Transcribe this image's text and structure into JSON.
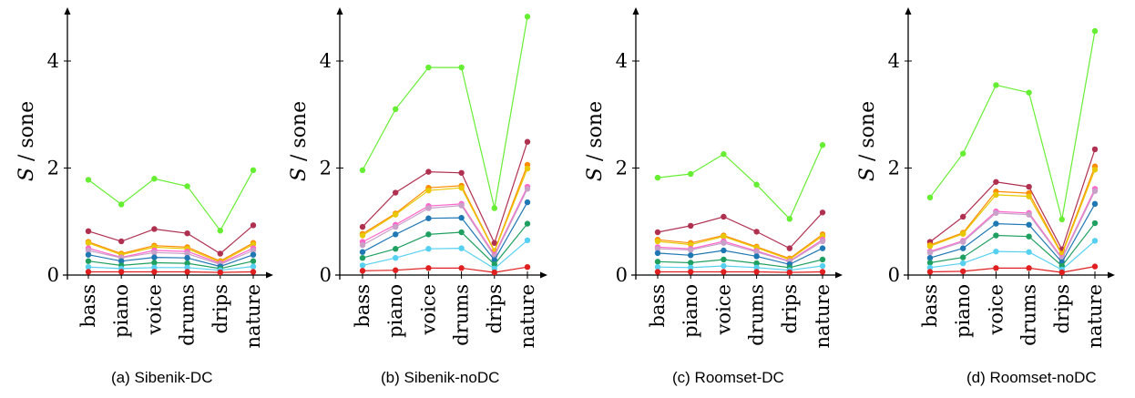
{
  "chart_data": [
    {
      "type": "line",
      "caption": "(a) Sibenik-DC",
      "ylabel_var": "S",
      "ylabel_unit": "/ sone",
      "categories": [
        "bass",
        "piano",
        "voice",
        "drums",
        "drips",
        "nature"
      ],
      "yticks": [
        "0",
        "2",
        "4"
      ],
      "ylim": [
        0,
        5
      ],
      "series": [
        {
          "color": "#66ee33",
          "values": [
            1.78,
            1.32,
            1.8,
            1.66,
            0.83,
            1.96
          ]
        },
        {
          "color": "#b03050",
          "values": [
            0.82,
            0.63,
            0.86,
            0.78,
            0.4,
            0.93
          ]
        },
        {
          "color": "#ff8c00",
          "values": [
            0.62,
            0.4,
            0.55,
            0.52,
            0.26,
            0.6
          ]
        },
        {
          "color": "#e8c800",
          "values": [
            0.6,
            0.38,
            0.52,
            0.49,
            0.24,
            0.57
          ]
        },
        {
          "color": "#ff66cc",
          "values": [
            0.5,
            0.33,
            0.46,
            0.44,
            0.22,
            0.5
          ]
        },
        {
          "color": "#c8a0c8",
          "values": [
            0.46,
            0.32,
            0.42,
            0.4,
            0.2,
            0.46
          ]
        },
        {
          "color": "#1f77b4",
          "values": [
            0.38,
            0.26,
            0.33,
            0.32,
            0.16,
            0.38
          ]
        },
        {
          "color": "#20a060",
          "values": [
            0.26,
            0.18,
            0.23,
            0.22,
            0.12,
            0.26
          ]
        },
        {
          "color": "#55d0f0",
          "values": [
            0.15,
            0.12,
            0.14,
            0.14,
            0.09,
            0.16
          ]
        },
        {
          "color": "#e02020",
          "values": [
            0.06,
            0.06,
            0.06,
            0.06,
            0.05,
            0.06
          ]
        }
      ]
    },
    {
      "type": "line",
      "caption": "(b) Sibenik-noDC",
      "ylabel_var": "S",
      "ylabel_unit": "/ sone",
      "categories": [
        "bass",
        "piano",
        "voice",
        "drums",
        "drips",
        "nature"
      ],
      "yticks": [
        "0",
        "2",
        "4"
      ],
      "ylim": [
        0,
        5
      ],
      "series": [
        {
          "color": "#66ee33",
          "values": [
            1.96,
            3.1,
            3.88,
            3.88,
            1.25,
            4.83
          ]
        },
        {
          "color": "#b03050",
          "values": [
            0.9,
            1.54,
            1.93,
            1.91,
            0.6,
            2.49
          ]
        },
        {
          "color": "#ff8c00",
          "values": [
            0.77,
            1.15,
            1.63,
            1.67,
            0.45,
            2.06
          ]
        },
        {
          "color": "#e8c800",
          "values": [
            0.74,
            1.13,
            1.58,
            1.63,
            0.44,
            1.99
          ]
        },
        {
          "color": "#ff66cc",
          "values": [
            0.62,
            0.94,
            1.29,
            1.33,
            0.38,
            1.65
          ]
        },
        {
          "color": "#c8a0c8",
          "values": [
            0.56,
            0.9,
            1.25,
            1.3,
            0.35,
            1.61
          ]
        },
        {
          "color": "#1f77b4",
          "values": [
            0.43,
            0.76,
            1.06,
            1.07,
            0.28,
            1.36
          ]
        },
        {
          "color": "#20a060",
          "values": [
            0.32,
            0.49,
            0.76,
            0.8,
            0.2,
            0.96
          ]
        },
        {
          "color": "#55d0f0",
          "values": [
            0.18,
            0.32,
            0.49,
            0.5,
            0.12,
            0.65
          ]
        },
        {
          "color": "#e02020",
          "values": [
            0.08,
            0.09,
            0.13,
            0.13,
            0.05,
            0.15
          ]
        }
      ]
    },
    {
      "type": "line",
      "caption": "(c) Roomset-DC",
      "ylabel_var": "S",
      "ylabel_unit": "/ sone",
      "categories": [
        "bass",
        "piano",
        "voice",
        "drums",
        "drips",
        "nature"
      ],
      "yticks": [
        "0",
        "2",
        "4"
      ],
      "ylim": [
        0,
        5
      ],
      "series": [
        {
          "color": "#66ee33",
          "values": [
            1.82,
            1.89,
            2.26,
            1.69,
            1.05,
            2.43
          ]
        },
        {
          "color": "#b03050",
          "values": [
            0.8,
            0.92,
            1.09,
            0.81,
            0.5,
            1.17
          ]
        },
        {
          "color": "#ff8c00",
          "values": [
            0.66,
            0.6,
            0.74,
            0.53,
            0.31,
            0.76
          ]
        },
        {
          "color": "#e8c800",
          "values": [
            0.63,
            0.57,
            0.72,
            0.51,
            0.29,
            0.73
          ]
        },
        {
          "color": "#ff66cc",
          "values": [
            0.52,
            0.49,
            0.63,
            0.45,
            0.26,
            0.66
          ]
        },
        {
          "color": "#c8a0c8",
          "values": [
            0.49,
            0.47,
            0.6,
            0.43,
            0.25,
            0.63
          ]
        },
        {
          "color": "#1f77b4",
          "values": [
            0.41,
            0.37,
            0.46,
            0.35,
            0.2,
            0.5
          ]
        },
        {
          "color": "#20a060",
          "values": [
            0.25,
            0.23,
            0.29,
            0.22,
            0.14,
            0.29
          ]
        },
        {
          "color": "#55d0f0",
          "values": [
            0.15,
            0.14,
            0.17,
            0.14,
            0.09,
            0.17
          ]
        },
        {
          "color": "#e02020",
          "values": [
            0.06,
            0.06,
            0.06,
            0.06,
            0.05,
            0.06
          ]
        }
      ]
    },
    {
      "type": "line",
      "caption": "(d) Roomset-noDC",
      "ylabel_var": "S",
      "ylabel_unit": "/ sone",
      "categories": [
        "bass",
        "piano",
        "voice",
        "drums",
        "drips",
        "nature"
      ],
      "yticks": [
        "0",
        "2",
        "4"
      ],
      "ylim": [
        0,
        5
      ],
      "series": [
        {
          "color": "#66ee33",
          "values": [
            1.45,
            2.27,
            3.55,
            3.41,
            1.04,
            4.56
          ]
        },
        {
          "color": "#b03050",
          "values": [
            0.62,
            1.09,
            1.74,
            1.65,
            0.48,
            2.35
          ]
        },
        {
          "color": "#ff8c00",
          "values": [
            0.56,
            0.79,
            1.56,
            1.53,
            0.4,
            2.03
          ]
        },
        {
          "color": "#e8c800",
          "values": [
            0.54,
            0.77,
            1.5,
            1.47,
            0.38,
            1.97
          ]
        },
        {
          "color": "#ff66cc",
          "values": [
            0.44,
            0.64,
            1.19,
            1.16,
            0.32,
            1.61
          ]
        },
        {
          "color": "#c8a0c8",
          "values": [
            0.42,
            0.62,
            1.16,
            1.13,
            0.3,
            1.57
          ]
        },
        {
          "color": "#1f77b4",
          "values": [
            0.32,
            0.5,
            0.96,
            0.94,
            0.24,
            1.33
          ]
        },
        {
          "color": "#20a060",
          "values": [
            0.23,
            0.33,
            0.74,
            0.72,
            0.17,
            0.97
          ]
        },
        {
          "color": "#55d0f0",
          "values": [
            0.14,
            0.22,
            0.44,
            0.43,
            0.1,
            0.64
          ]
        },
        {
          "color": "#e02020",
          "values": [
            0.06,
            0.07,
            0.13,
            0.13,
            0.05,
            0.16
          ]
        }
      ]
    }
  ]
}
